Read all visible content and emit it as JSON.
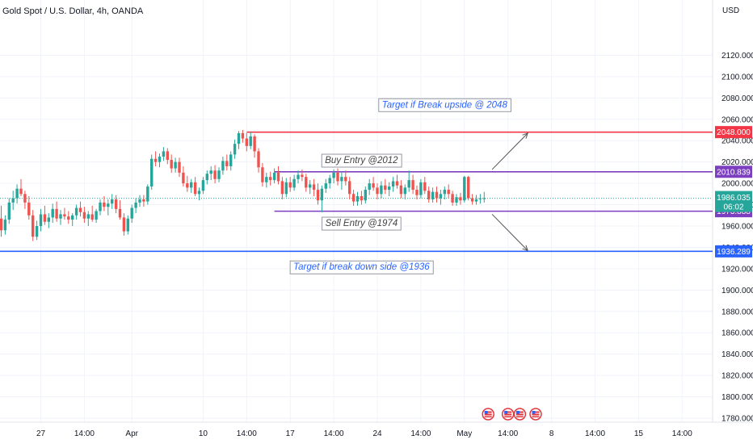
{
  "chart_data": {
    "type": "candlestick",
    "title": "Gold Spot / U.S. Dollar, 4h, OANDA",
    "currency_label": "USD",
    "ylim": [
      1780,
      2140
    ],
    "y_ticks": [
      2120,
      2100,
      2080,
      2060,
      2040,
      2020,
      2000,
      1980,
      1960,
      1940,
      1920,
      1900,
      1880,
      1860,
      1840,
      1820,
      1800,
      1780
    ],
    "y_tick_labels": [
      "2120.000",
      "2100.000",
      "2080.000",
      "2060.000",
      "2040.000",
      "2020.000",
      "2000.000",
      "1980.000",
      "1960.000",
      "1940.000",
      "1920.000",
      "1900.000",
      "1880.000",
      "1860.000",
      "1840.000",
      "1820.000",
      "1800.000",
      "1780.000"
    ],
    "x_ticks": [
      {
        "label": "27",
        "bar": 10
      },
      {
        "label": "14:00",
        "bar": 21
      },
      {
        "label": "Apr",
        "bar": 33
      },
      {
        "label": "10",
        "bar": 51
      },
      {
        "label": "14:00",
        "bar": 62
      },
      {
        "label": "17",
        "bar": 73
      },
      {
        "label": "14:00",
        "bar": 84
      },
      {
        "label": "24",
        "bar": 95
      },
      {
        "label": "14:00",
        "bar": 106
      },
      {
        "label": "May",
        "bar": 117
      },
      {
        "label": "14:00",
        "bar": 128
      },
      {
        "label": "8",
        "bar": 139
      },
      {
        "label": "14:00",
        "bar": 150
      },
      {
        "label": "15",
        "bar": 161
      },
      {
        "label": "14:00",
        "bar": 172
      }
    ],
    "colors": {
      "up": "#26a69a",
      "down": "#ef5350"
    },
    "candles": [
      [
        1967,
        1979,
        1950,
        1956
      ],
      [
        1956,
        1970,
        1952,
        1966
      ],
      [
        1966,
        1986,
        1962,
        1982
      ],
      [
        1982,
        1993,
        1975,
        1986
      ],
      [
        1986,
        1999,
        1981,
        1995
      ],
      [
        1995,
        2004,
        1988,
        1990
      ],
      [
        1990,
        1993,
        1976,
        1982
      ],
      [
        1982,
        1988,
        1966,
        1970
      ],
      [
        1970,
        1975,
        1946,
        1950
      ],
      [
        1950,
        1965,
        1947,
        1960
      ],
      [
        1960,
        1976,
        1955,
        1971
      ],
      [
        1971,
        1979,
        1961,
        1964
      ],
      [
        1964,
        1972,
        1958,
        1968
      ],
      [
        1968,
        1981,
        1963,
        1976
      ],
      [
        1976,
        1983,
        1964,
        1967
      ],
      [
        1967,
        1975,
        1961,
        1971
      ],
      [
        1971,
        1977,
        1966,
        1969
      ],
      [
        1969,
        1974,
        1962,
        1966
      ],
      [
        1966,
        1972,
        1960,
        1970
      ],
      [
        1970,
        1980,
        1966,
        1977
      ],
      [
        1977,
        1983,
        1969,
        1973
      ],
      [
        1973,
        1978,
        1963,
        1967
      ],
      [
        1967,
        1974,
        1960,
        1971
      ],
      [
        1971,
        1979,
        1964,
        1966
      ],
      [
        1966,
        1976,
        1963,
        1974
      ],
      [
        1974,
        1985,
        1970,
        1982
      ],
      [
        1982,
        1988,
        1974,
        1978
      ],
      [
        1978,
        1985,
        1970,
        1981
      ],
      [
        1981,
        1990,
        1976,
        1985
      ],
      [
        1985,
        1989,
        1972,
        1976
      ],
      [
        1976,
        1984,
        1966,
        1968
      ],
      [
        1968,
        1972,
        1951,
        1955
      ],
      [
        1955,
        1970,
        1952,
        1967
      ],
      [
        1967,
        1980,
        1963,
        1977
      ],
      [
        1977,
        1986,
        1972,
        1982
      ],
      [
        1982,
        1989,
        1978,
        1985
      ],
      [
        1985,
        1989,
        1978,
        1983
      ],
      [
        1983,
        1999,
        1980,
        1997
      ],
      [
        1997,
        2027,
        1994,
        2023
      ],
      [
        2023,
        2030,
        2016,
        2020
      ],
      [
        2020,
        2028,
        2015,
        2025
      ],
      [
        2025,
        2034,
        2021,
        2030
      ],
      [
        2030,
        2033,
        2018,
        2022
      ],
      [
        2022,
        2027,
        2010,
        2014
      ],
      [
        2014,
        2024,
        2010,
        2020
      ],
      [
        2020,
        2024,
        2006,
        2010
      ],
      [
        2010,
        2016,
        1997,
        2000
      ],
      [
        2000,
        2007,
        1992,
        1996
      ],
      [
        1996,
        2004,
        1991,
        2001
      ],
      [
        2001,
        2006,
        1988,
        1990
      ],
      [
        1990,
        1996,
        1984,
        1993
      ],
      [
        1993,
        2006,
        1990,
        2003
      ],
      [
        2003,
        2012,
        1999,
        2009
      ],
      [
        2009,
        2016,
        2003,
        2012
      ],
      [
        2012,
        2017,
        2000,
        2004
      ],
      [
        2004,
        2015,
        2001,
        2012
      ],
      [
        2012,
        2025,
        2008,
        2021
      ],
      [
        2021,
        2027,
        2012,
        2016
      ],
      [
        2016,
        2030,
        2012,
        2027
      ],
      [
        2027,
        2041,
        2023,
        2037
      ],
      [
        2037,
        2049,
        2032,
        2047
      ],
      [
        2047,
        2050,
        2038,
        2042
      ],
      [
        2042,
        2047,
        2030,
        2035
      ],
      [
        2035,
        2048,
        2032,
        2044
      ],
      [
        2044,
        2046,
        2024,
        2030
      ],
      [
        2030,
        2033,
        2010,
        2015
      ],
      [
        2015,
        2019,
        1997,
        2001
      ],
      [
        2001,
        2010,
        1996,
        2006
      ],
      [
        2006,
        2011,
        1998,
        2003
      ],
      [
        2003,
        2014,
        2000,
        2010
      ],
      [
        2010,
        2016,
        1999,
        2002
      ],
      [
        2002,
        2006,
        1985,
        1990
      ],
      [
        1990,
        2005,
        1987,
        2001
      ],
      [
        2001,
        2006,
        1992,
        1996
      ],
      [
        1996,
        2008,
        1993,
        2004
      ],
      [
        2004,
        2012,
        2000,
        2008
      ],
      [
        2008,
        2013,
        2002,
        2006
      ],
      [
        2006,
        2009,
        1992,
        1996
      ],
      [
        1996,
        2003,
        1990,
        1999
      ],
      [
        1999,
        2004,
        1988,
        1994
      ],
      [
        1994,
        2000,
        1980,
        1984
      ],
      [
        1984,
        1998,
        1973,
        1995
      ],
      [
        1995,
        2004,
        1991,
        2000
      ],
      [
        2000,
        2008,
        1995,
        2005
      ],
      [
        2005,
        2013,
        2000,
        2010
      ],
      [
        2010,
        2014,
        1998,
        2002
      ],
      [
        2002,
        2010,
        1994,
        2006
      ],
      [
        2006,
        2012,
        1998,
        2002
      ],
      [
        2002,
        2006,
        1985,
        1990
      ],
      [
        1990,
        1994,
        1979,
        1983
      ],
      [
        1983,
        1992,
        1979,
        1988
      ],
      [
        1988,
        1993,
        1980,
        1984
      ],
      [
        1984,
        1997,
        1981,
        1994
      ],
      [
        1994,
        2004,
        1989,
        2000
      ],
      [
        2000,
        2006,
        1993,
        1996
      ],
      [
        1996,
        2000,
        1985,
        1990
      ],
      [
        1990,
        2002,
        1986,
        1998
      ],
      [
        1998,
        2004,
        1990,
        1994
      ],
      [
        1994,
        2001,
        1988,
        1997
      ],
      [
        1997,
        2006,
        1992,
        2002
      ],
      [
        2002,
        2008,
        1995,
        1998
      ],
      [
        1998,
        2003,
        1986,
        1990
      ],
      [
        1990,
        1999,
        1985,
        1996
      ],
      [
        1996,
        2012,
        1992,
        2003
      ],
      [
        2003,
        2008,
        1990,
        1994
      ],
      [
        1994,
        1998,
        1985,
        1989
      ],
      [
        1989,
        2004,
        1986,
        2001
      ],
      [
        2001,
        2006,
        1990,
        1993
      ],
      [
        1993,
        1997,
        1982,
        1985
      ],
      [
        1985,
        1996,
        1982,
        1992
      ],
      [
        1992,
        1997,
        1982,
        1986
      ],
      [
        1986,
        1994,
        1980,
        1990
      ],
      [
        1990,
        1997,
        1985,
        1994
      ],
      [
        1994,
        1999,
        1986,
        1990
      ],
      [
        1990,
        1993,
        1979,
        1982
      ],
      [
        1982,
        1990,
        1979,
        1987
      ],
      [
        1987,
        1991,
        1980,
        1984
      ],
      [
        1984,
        2007,
        1982,
        2006
      ],
      [
        2006,
        2007,
        1984,
        1986
      ],
      [
        1986,
        1990,
        1980,
        1983
      ],
      [
        1983,
        1989,
        1980,
        1985
      ],
      [
        1985,
        1990,
        1981,
        1986
      ],
      [
        1986,
        1992,
        1982,
        1986
      ]
    ],
    "horizontal_levels": [
      {
        "value": 2048.0,
        "label": "2048.000",
        "color": "#f23645",
        "start_bar": 62
      },
      {
        "value": 2010.839,
        "label": "2010.839",
        "color": "#7b3fbf",
        "start_bar": 69
      },
      {
        "value": 1973.888,
        "label": "1973.888",
        "color": "#7b3fbf",
        "start_bar": 69
      },
      {
        "value": 1936.289,
        "label": "1936.289",
        "color": "#2962ff",
        "start_bar": -1
      }
    ],
    "last_price": {
      "value": 1986.035,
      "label": "1986.035",
      "countdown": "06:02",
      "color": "#26a69a"
    },
    "annotations": [
      {
        "text": "Target if Break upside @ 2048",
        "bar": 112,
        "price": 2074,
        "color": "#2962ff"
      },
      {
        "text": "Buy Entry @2012",
        "bar": 91,
        "price": 2022,
        "color": "#444444"
      },
      {
        "text": "Sell Entry @1974",
        "bar": 91,
        "price": 1963,
        "color": "#444444"
      },
      {
        "text": "Target if break down side @1936",
        "bar": 91,
        "price": 1922,
        "color": "#2962ff"
      }
    ],
    "arrows": [
      {
        "from_bar": 124,
        "from_price": 2013,
        "to_bar": 133,
        "to_price": 2047
      },
      {
        "from_bar": 124,
        "from_price": 1971,
        "to_bar": 133,
        "to_price": 1937
      }
    ],
    "event_markers": [
      123,
      128,
      131,
      135
    ]
  }
}
